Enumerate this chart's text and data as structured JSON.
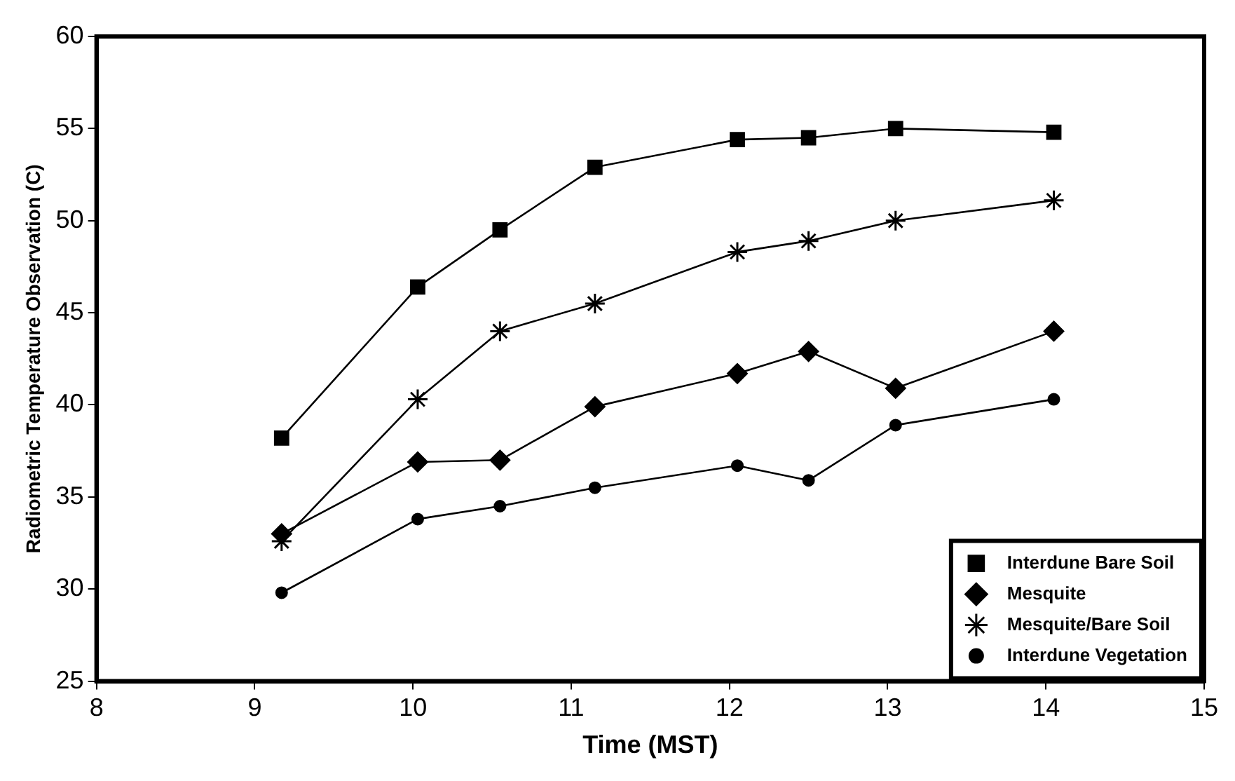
{
  "chart_data": {
    "type": "line",
    "xlabel": "Time (MST)",
    "ylabel": "Radiometric Temperature Observation (C)",
    "xlim": [
      8,
      15
    ],
    "xticks": [
      8,
      9,
      10,
      11,
      12,
      13,
      14,
      15
    ],
    "ylim": [
      25,
      60
    ],
    "yticks": [
      25,
      30,
      35,
      40,
      45,
      50,
      55,
      60
    ],
    "grid": false,
    "legend": "bottom right",
    "line_style": "solid",
    "series": [
      {
        "name": "Interdune Bare Soil",
        "color": "#000000",
        "marker": "square",
        "x": [
          9.17,
          10.03,
          10.55,
          11.15,
          12.05,
          12.5,
          13.05,
          14.05
        ],
        "values": [
          38.2,
          46.4,
          49.5,
          52.9,
          54.4,
          54.5,
          55.0,
          54.8
        ]
      },
      {
        "name": "Mesquite",
        "color": "#000000",
        "marker": "diamond",
        "x": [
          9.17,
          10.03,
          10.55,
          11.15,
          12.05,
          12.5,
          13.05,
          14.05
        ],
        "values": [
          33.0,
          36.9,
          37.0,
          39.9,
          41.7,
          42.9,
          40.9,
          44.0
        ]
      },
      {
        "name": "Mesquite/Bare Soil",
        "color": "#000000",
        "marker": "cross",
        "x": [
          9.17,
          10.03,
          10.55,
          11.15,
          12.05,
          12.5,
          13.05,
          14.05
        ],
        "values": [
          32.6,
          40.3,
          44.0,
          45.5,
          48.3,
          48.9,
          50.0,
          51.1
        ]
      },
      {
        "name": "Interdune Vegetation",
        "color": "#000000",
        "marker": "circle",
        "x": [
          9.17,
          10.03,
          10.55,
          11.15,
          12.05,
          12.5,
          13.05,
          14.05
        ],
        "values": [
          29.8,
          33.8,
          34.5,
          35.5,
          36.7,
          35.9,
          38.9,
          40.3
        ]
      }
    ]
  }
}
